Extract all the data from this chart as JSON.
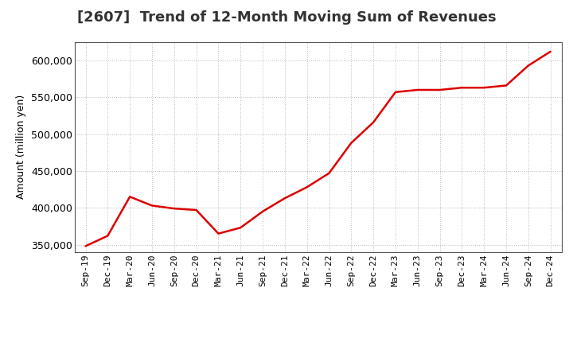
{
  "title": "[2607]  Trend of 12-Month Moving Sum of Revenues",
  "ylabel": "Amount (million yen)",
  "line_color": "#dd0000",
  "background_color": "#ffffff",
  "plot_bg_color": "#ffffff",
  "grid_color": "#aaaaaa",
  "ylim": [
    340000,
    625000
  ],
  "yticks": [
    350000,
    400000,
    450000,
    500000,
    550000,
    600000
  ],
  "x_labels": [
    "Sep-19",
    "Dec-19",
    "Mar-20",
    "Jun-20",
    "Sep-20",
    "Dec-20",
    "Mar-21",
    "Jun-21",
    "Sep-21",
    "Dec-21",
    "Mar-22",
    "Jun-22",
    "Sep-22",
    "Dec-22",
    "Mar-23",
    "Jun-23",
    "Sep-23",
    "Dec-23",
    "Mar-24",
    "Jun-24",
    "Sep-24",
    "Dec-24"
  ],
  "values": [
    348000,
    362000,
    415000,
    403000,
    399000,
    397000,
    365000,
    373000,
    395000,
    413000,
    428000,
    447000,
    488000,
    516000,
    557000,
    560000,
    560000,
    563000,
    563000,
    566000,
    593000,
    612000
  ],
  "title_fontsize": 13,
  "ylabel_fontsize": 9,
  "xtick_fontsize": 8,
  "ytick_fontsize": 9,
  "linewidth": 1.8
}
